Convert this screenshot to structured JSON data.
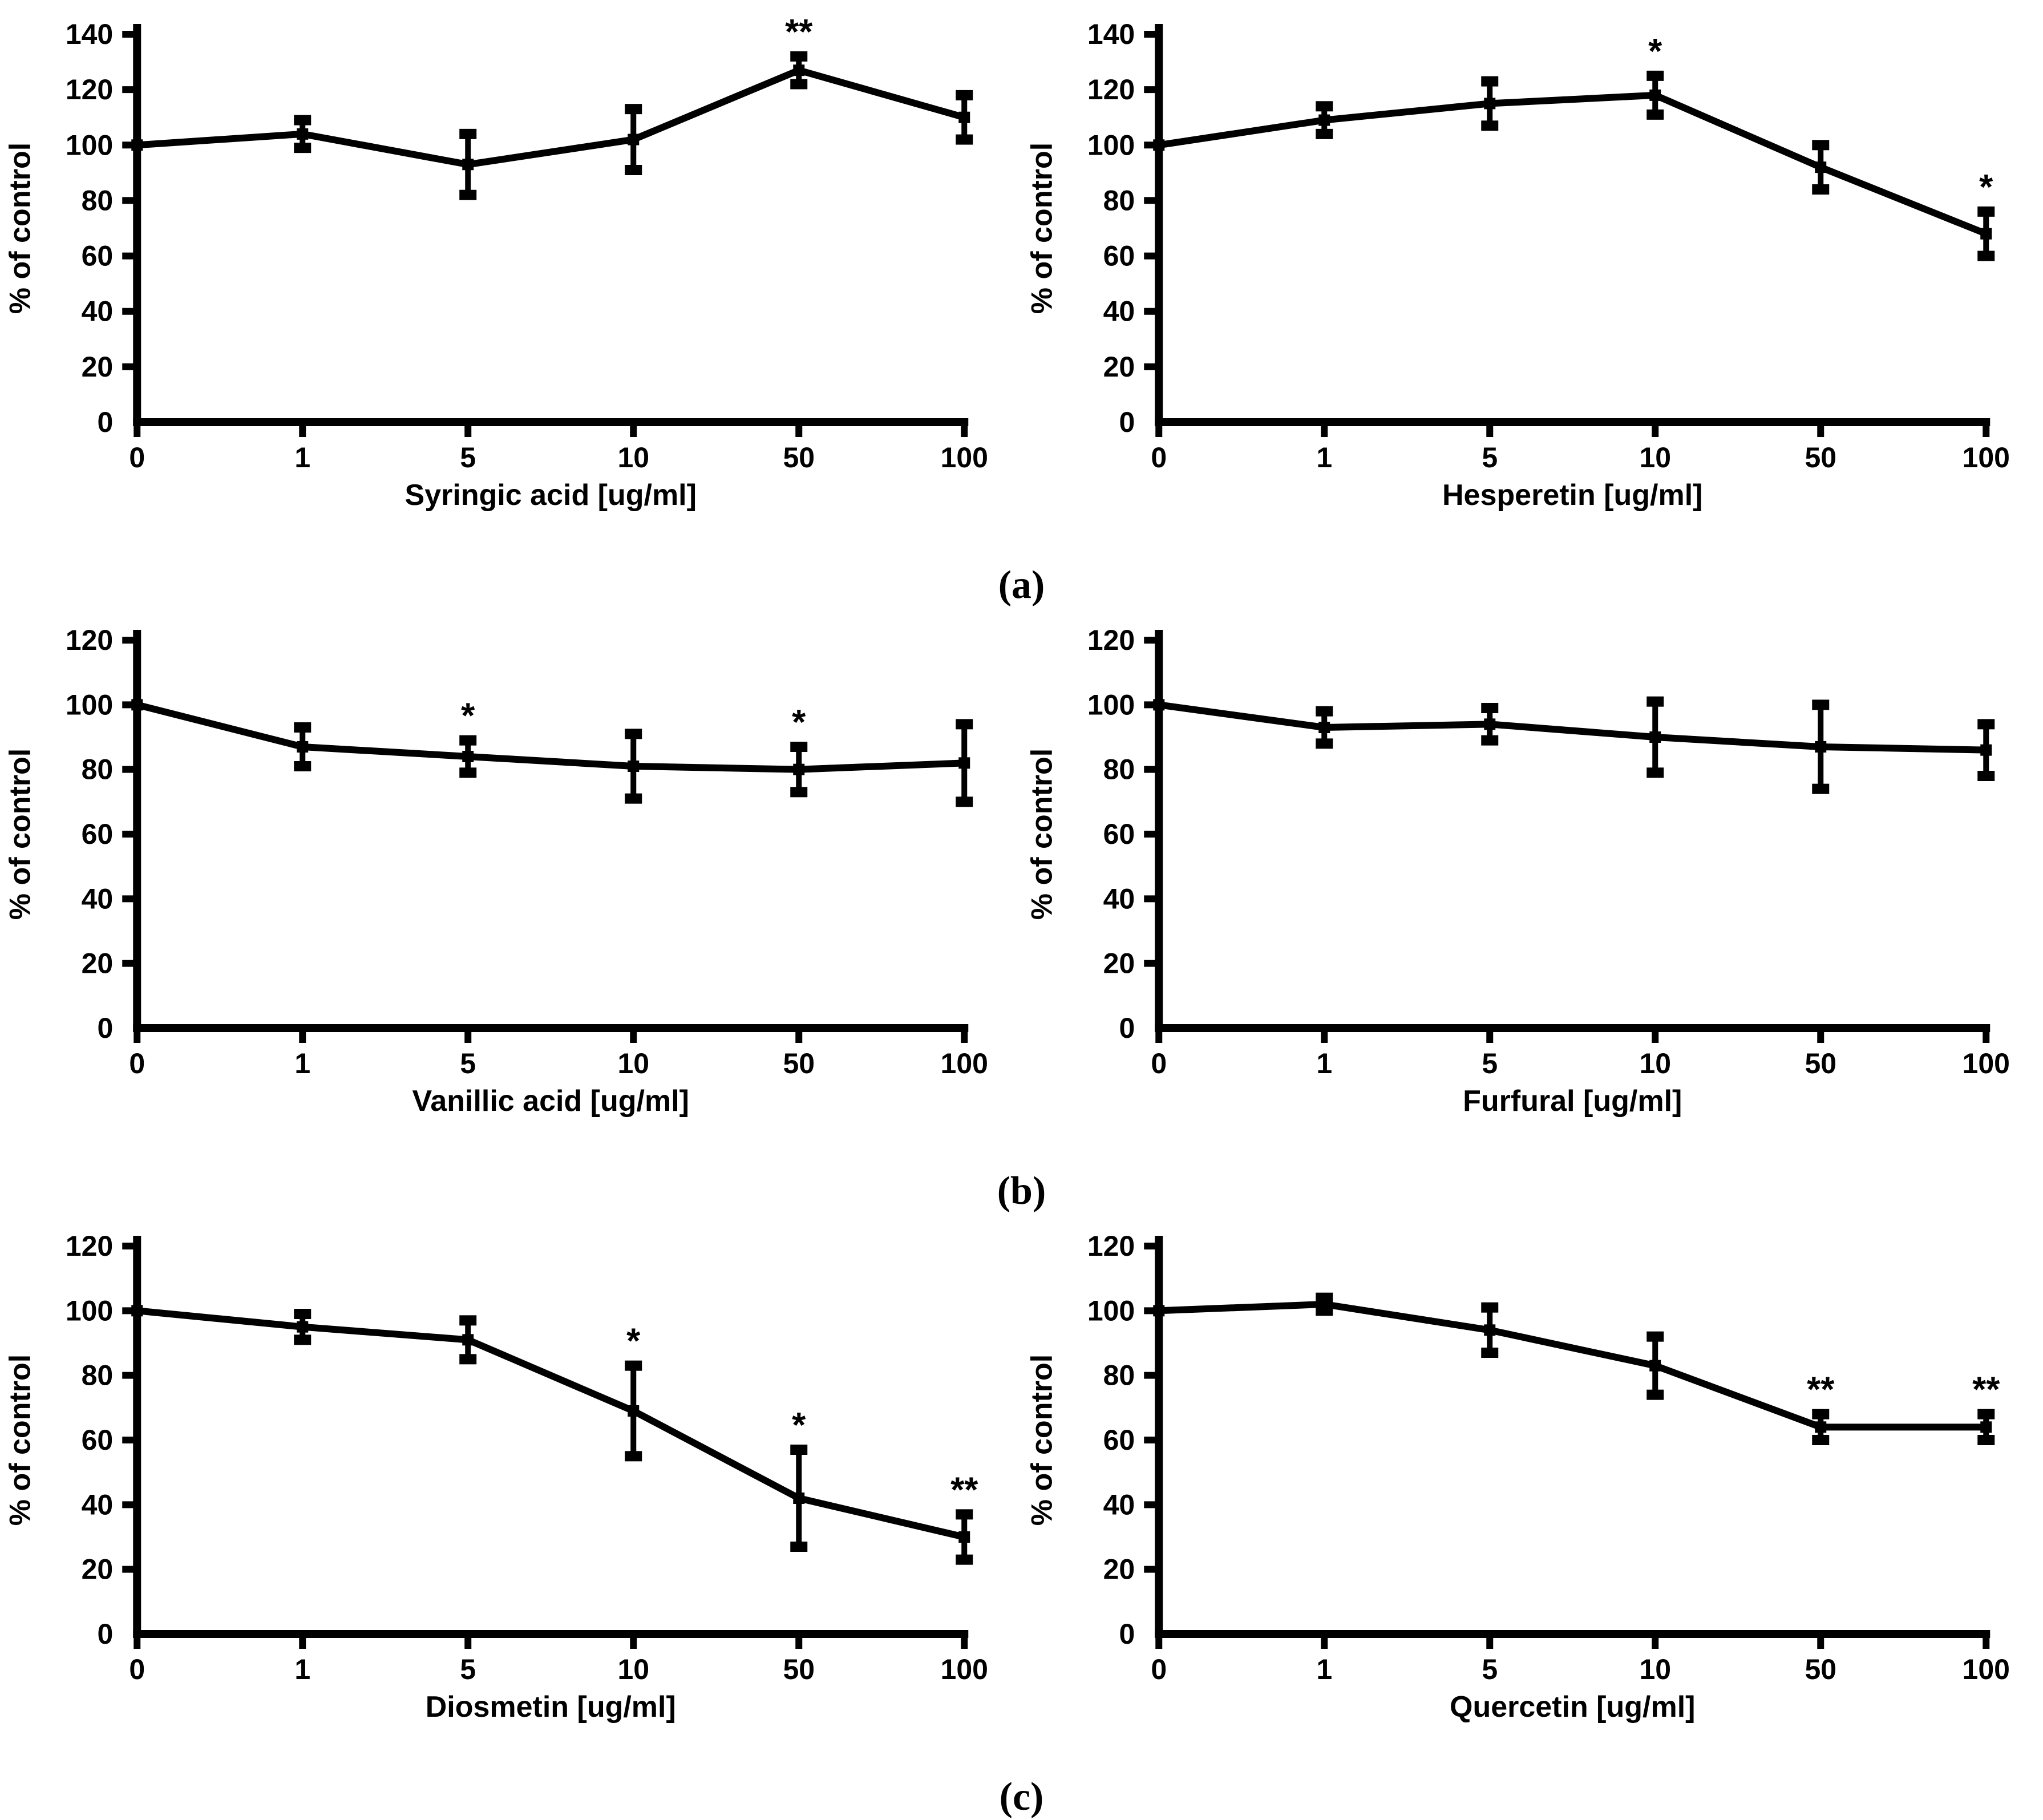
{
  "figure": {
    "background": "#ffffff",
    "ink_color": "#000000",
    "panel_labels": [
      "(a)",
      "(b)",
      "(c)"
    ]
  },
  "chart_data": [
    {
      "type": "line",
      "panel": "a",
      "title": "",
      "xlabel": "Syringic acid  [ug/ml]",
      "ylabel": "% of control",
      "categories": [
        "0",
        "1",
        "5",
        "10",
        "50",
        "100"
      ],
      "values": [
        100,
        104,
        93,
        102,
        127,
        110
      ],
      "error_bars": [
        0,
        5,
        11,
        11,
        5,
        8
      ],
      "significance": [
        "",
        "",
        "",
        "",
        "**",
        ""
      ],
      "ylim": [
        0,
        140
      ],
      "ytick_step": 20,
      "grid": false,
      "legend": "none"
    },
    {
      "type": "line",
      "panel": "a",
      "title": "",
      "xlabel": "Hesperetin  [ug/ml]",
      "ylabel": "% of control",
      "categories": [
        "0",
        "1",
        "5",
        "10",
        "50",
        "100"
      ],
      "values": [
        100,
        109,
        115,
        118,
        92,
        68
      ],
      "error_bars": [
        0,
        5,
        8,
        7,
        8,
        8
      ],
      "significance": [
        "",
        "",
        "",
        "*",
        "",
        "*"
      ],
      "ylim": [
        0,
        140
      ],
      "ytick_step": 20,
      "grid": false,
      "legend": "none"
    },
    {
      "type": "line",
      "panel": "b",
      "title": "",
      "xlabel": "Vanillic acid  [ug/ml]",
      "ylabel": "% of control",
      "categories": [
        "0",
        "1",
        "5",
        "10",
        "50",
        "100"
      ],
      "values": [
        100,
        87,
        84,
        81,
        80,
        82
      ],
      "error_bars": [
        0,
        6,
        5,
        10,
        7,
        12
      ],
      "significance": [
        "",
        "",
        "*",
        "",
        "*",
        ""
      ],
      "ylim": [
        0,
        120
      ],
      "ytick_step": 20,
      "grid": false,
      "legend": "none"
    },
    {
      "type": "line",
      "panel": "b",
      "title": "",
      "xlabel": "Furfural  [ug/ml]",
      "ylabel": "% of control",
      "categories": [
        "0",
        "1",
        "5",
        "10",
        "50",
        "100"
      ],
      "values": [
        100,
        93,
        94,
        90,
        87,
        86
      ],
      "error_bars": [
        0,
        5,
        5,
        11,
        13,
        8
      ],
      "significance": [
        "",
        "",
        "",
        "",
        "",
        ""
      ],
      "ylim": [
        0,
        120
      ],
      "ytick_step": 20,
      "grid": false,
      "legend": "none"
    },
    {
      "type": "line",
      "panel": "c",
      "title": "",
      "xlabel": "Diosmetin  [ug/ml]",
      "ylabel": "% of control",
      "categories": [
        "0",
        "1",
        "5",
        "10",
        "50",
        "100"
      ],
      "values": [
        100,
        95,
        91,
        69,
        42,
        30
      ],
      "error_bars": [
        0,
        4,
        6,
        14,
        15,
        7
      ],
      "significance": [
        "",
        "",
        "",
        "*",
        "*",
        "**"
      ],
      "ylim": [
        0,
        120
      ],
      "ytick_step": 20,
      "grid": false,
      "legend": "none"
    },
    {
      "type": "line",
      "panel": "c",
      "title": "",
      "xlabel": "Quercetin  [ug/ml]",
      "ylabel": "% of control",
      "categories": [
        "0",
        "1",
        "5",
        "10",
        "50",
        "100"
      ],
      "values": [
        100,
        102,
        94,
        83,
        64,
        64
      ],
      "error_bars": [
        0,
        2,
        7,
        9,
        4,
        4
      ],
      "significance": [
        "",
        "",
        "",
        "",
        "**",
        "**"
      ],
      "ylim": [
        0,
        120
      ],
      "ytick_step": 20,
      "grid": false,
      "legend": "none"
    }
  ]
}
